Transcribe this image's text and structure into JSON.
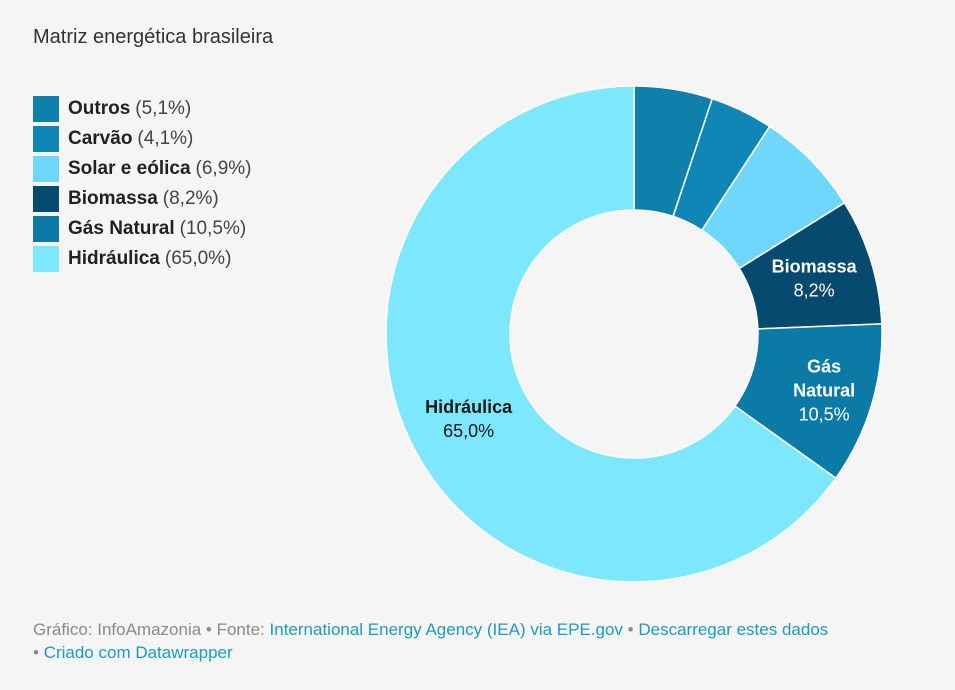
{
  "chart_data": {
    "type": "pie",
    "title": "Matriz energética brasileira",
    "slices": [
      {
        "name": "Outros",
        "value": 5.1,
        "pct_label": "(5,1%)",
        "color": "#0f7fac"
      },
      {
        "name": "Carvão",
        "value": 4.1,
        "pct_label": "(4,1%)",
        "color": "#0f86b5"
      },
      {
        "name": "Solar e eólica",
        "value": 6.9,
        "pct_label": "(6,9%)",
        "color": "#6fd7fb"
      },
      {
        "name": "Biomassa",
        "value": 8.2,
        "pct_label": "(8,2%)",
        "color": "#064a70",
        "label_lines": [
          "Biomassa"
        ],
        "value_label": "8,2%",
        "label_color": "#ffffff"
      },
      {
        "name": "Gás Natural",
        "value": 10.5,
        "pct_label": "(10,5%)",
        "color": "#0c7aa6",
        "label_lines": [
          "Gás",
          "Natural"
        ],
        "value_label": "10,5%",
        "label_color": "#ffffff"
      },
      {
        "name": "Hidráulica",
        "value": 65.0,
        "pct_label": "(65,0%)",
        "color": "#7de7fd",
        "label_lines": [
          "Hidráulica"
        ],
        "value_label": "65,0%",
        "label_color": "#1a1a1a"
      }
    ],
    "hole": "donut",
    "legend_placement": "top-left"
  },
  "footer": {
    "credit_prefix": "Gráfico: InfoAmazonia • Fonte: ",
    "source_link": "International Energy Agency (IEA) via EPE.gov",
    "separator1": " • ",
    "download_link": "Descarregar estes dados",
    "separator2": " • ",
    "made_with_link": "Criado com Datawrapper"
  }
}
